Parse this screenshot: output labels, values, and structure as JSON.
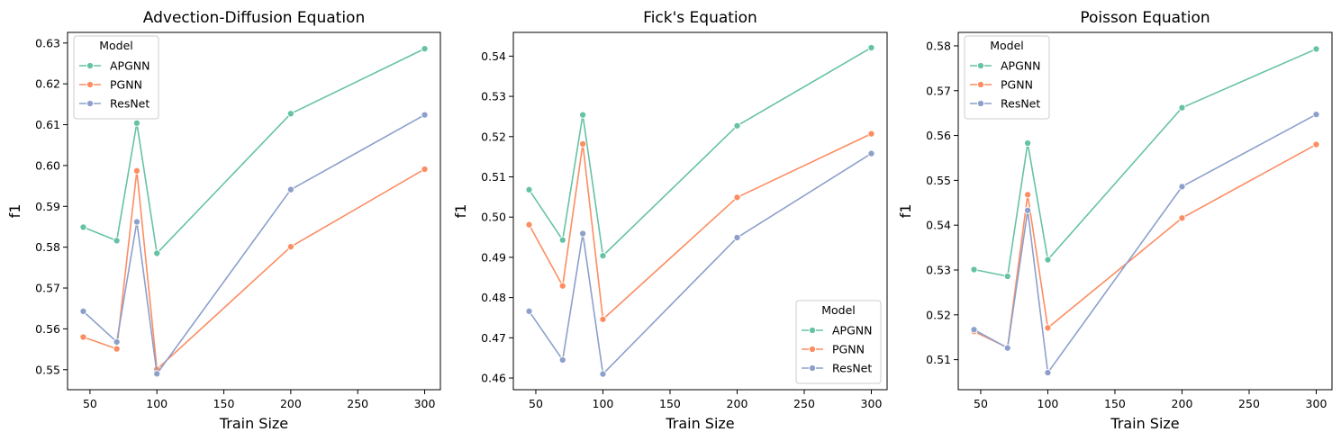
{
  "chart_data": [
    {
      "type": "line",
      "title": "Advection-Diffusion Equation",
      "xlabel": "Train Size",
      "ylabel": "f1",
      "x": [
        45,
        70,
        85,
        100,
        200,
        300
      ],
      "xlim": [
        33.25,
        311.75
      ],
      "ylim": [
        0.5451,
        0.6326
      ],
      "xticks": [
        50,
        100,
        150,
        200,
        250,
        300
      ],
      "yticks": [
        0.55,
        0.56,
        0.57,
        0.58,
        0.59,
        0.6,
        0.61,
        0.62,
        0.63
      ],
      "ytick_labels": [
        "0.55",
        "0.56",
        "0.57",
        "0.58",
        "0.59",
        "0.60",
        "0.61",
        "0.62",
        "0.63"
      ],
      "legend": {
        "title": "Model",
        "position": "upper-left"
      },
      "series": [
        {
          "name": "APGNN",
          "color": "#66c2a5",
          "values": [
            0.5849,
            0.5816,
            0.6104,
            0.5785,
            0.6127,
            0.6286
          ]
        },
        {
          "name": "PGNN",
          "color": "#fc8d62",
          "values": [
            0.558,
            0.5551,
            0.5987,
            0.5501,
            0.5801,
            0.5991
          ]
        },
        {
          "name": "ResNet",
          "color": "#8da0cb",
          "values": [
            0.5643,
            0.5568,
            0.5862,
            0.549,
            0.5941,
            0.6124
          ]
        }
      ]
    },
    {
      "type": "line",
      "title": "Fick's Equation",
      "xlabel": "Train Size",
      "ylabel": "f1",
      "x": [
        45,
        70,
        85,
        100,
        200,
        300
      ],
      "xlim": [
        33.25,
        311.75
      ],
      "ylim": [
        0.4571,
        0.5459
      ],
      "xticks": [
        50,
        100,
        150,
        200,
        250,
        300
      ],
      "yticks": [
        0.46,
        0.47,
        0.48,
        0.49,
        0.5,
        0.51,
        0.52,
        0.53,
        0.54
      ],
      "ytick_labels": [
        "0.46",
        "0.47",
        "0.48",
        "0.49",
        "0.50",
        "0.51",
        "0.52",
        "0.53",
        "0.54"
      ],
      "legend": {
        "title": "Model",
        "position": "lower-right"
      },
      "series": [
        {
          "name": "APGNN",
          "color": "#66c2a5",
          "values": [
            0.5068,
            0.4943,
            0.5254,
            0.4904,
            0.5227,
            0.5421
          ]
        },
        {
          "name": "PGNN",
          "color": "#fc8d62",
          "values": [
            0.4981,
            0.4829,
            0.5182,
            0.4746,
            0.5049,
            0.5207
          ]
        },
        {
          "name": "ResNet",
          "color": "#8da0cb",
          "values": [
            0.4766,
            0.4645,
            0.4959,
            0.461,
            0.4949,
            0.5158
          ]
        }
      ]
    },
    {
      "type": "line",
      "title": "Poisson Equation",
      "xlabel": "Train Size",
      "ylabel": "f1",
      "x": [
        45,
        70,
        85,
        100,
        200,
        300
      ],
      "xlim": [
        33.25,
        311.75
      ],
      "ylim": [
        0.5033,
        0.583
      ],
      "xticks": [
        50,
        100,
        150,
        200,
        250,
        300
      ],
      "yticks": [
        0.51,
        0.52,
        0.53,
        0.54,
        0.55,
        0.56,
        0.57,
        0.58
      ],
      "ytick_labels": [
        "0.51",
        "0.52",
        "0.53",
        "0.54",
        "0.55",
        "0.56",
        "0.57",
        "0.58"
      ],
      "legend": {
        "title": "Model",
        "position": "upper-left"
      },
      "series": [
        {
          "name": "APGNN",
          "color": "#66c2a5",
          "values": [
            0.5301,
            0.5286,
            0.5583,
            0.5323,
            0.5662,
            0.5793
          ]
        },
        {
          "name": "PGNN",
          "color": "#fc8d62",
          "values": [
            0.5163,
            0.5127,
            0.5468,
            0.5171,
            0.5416,
            0.558
          ]
        },
        {
          "name": "ResNet",
          "color": "#8da0cb",
          "values": [
            0.5167,
            0.5126,
            0.5433,
            0.5071,
            0.5486,
            0.5647
          ]
        }
      ]
    }
  ]
}
